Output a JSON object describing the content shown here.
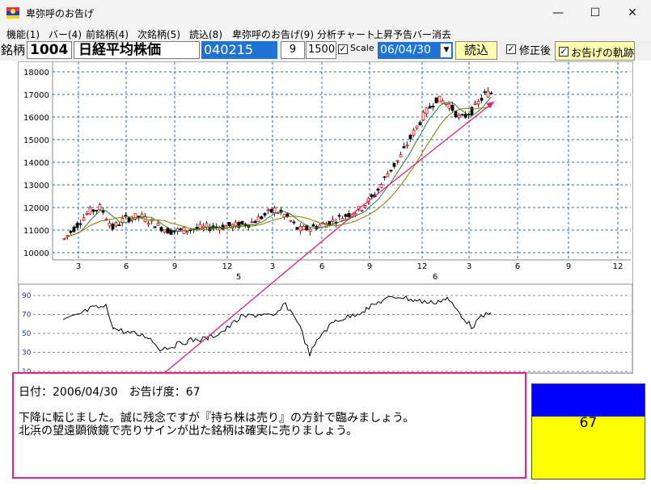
{
  "window": {
    "title": "卑弥呼のお告げ",
    "minimize_symbol": "—",
    "maximize_symbol": "☐",
    "close_symbol": "✕"
  },
  "menu": [
    "機能(1)",
    "バー(4)",
    "前銘柄(4)",
    "次銘柄(5)",
    "読込(8)",
    "卑弥呼のお告げ(9)",
    "分析チャート",
    "上昇予告バー消去"
  ],
  "toolbar": {
    "code_label": "銘柄",
    "code": "1004",
    "name": "日経平均株価",
    "date_code": "040215",
    "period": "9",
    "count": "1500",
    "scale_label": "Scale",
    "scale_checked": true,
    "date": "06/04/30",
    "load_button": "読込",
    "adjusted_label": "修正後",
    "adjusted_checked": true,
    "trail_label": "お告げの軌跡",
    "trail_checked": true
  },
  "chart": {
    "price_ticks": [
      "18000",
      "17000",
      "16000",
      "15000",
      "14000",
      "13000",
      "12000",
      "11000",
      "10000"
    ],
    "month_ticks": [
      "3",
      "6",
      "9",
      "12",
      "3",
      "6",
      "9",
      "12",
      "3",
      "6",
      "9",
      "12"
    ],
    "year_labels": [
      "5",
      "6"
    ],
    "osc_ticks": [
      "90",
      "70",
      "50",
      "30",
      "10"
    ]
  },
  "message": {
    "line1": "日付：2006/04/30　お告げ度：67",
    "line2": "下降に転じました。誠に残念ですが『持ち株は売り』の方針で臨みましょう。",
    "line3": "北浜の望遠顕微鏡で売りサインが出た銘柄は確実に売りましょう。"
  },
  "score": {
    "value": "67",
    "level": 0.67,
    "top_color": "#0000ff",
    "bottom_color": "#ffff00"
  },
  "colors": {
    "accent_pink": "#e0207f",
    "grid": "#1a6fb5",
    "ma_green": "#2e7d32",
    "ma_olive": "#8a7a00"
  }
}
